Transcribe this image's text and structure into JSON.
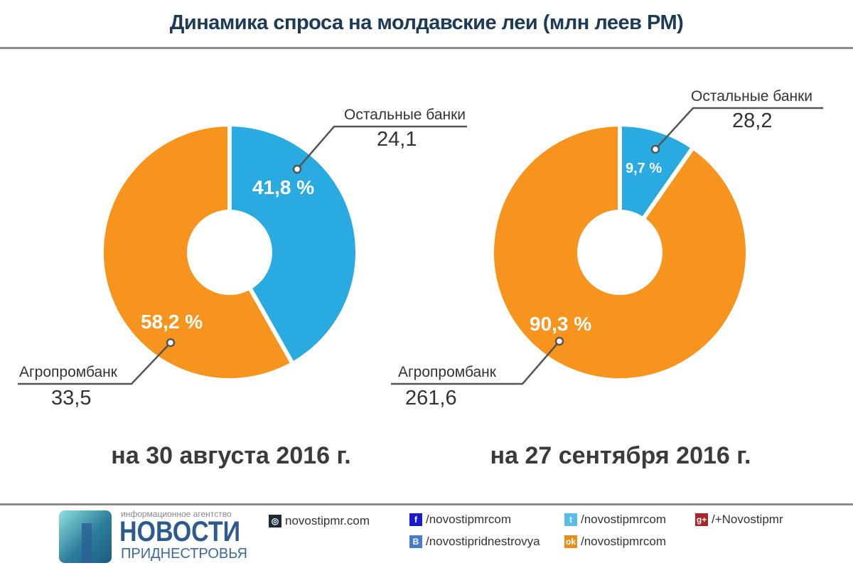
{
  "title": "Динамика спроса на молдавские леи (млн леев РМ)",
  "chart_data": [
    {
      "type": "pie",
      "subtitle": "на 30 августа 2016 г.",
      "slices": [
        {
          "name": "Остальные банки",
          "value": 24.1,
          "value_label": "24,1",
          "percent": 41.8,
          "percent_label": "41,8 %",
          "color": "#29abe2"
        },
        {
          "name": "Агропромбанк",
          "value": 33.5,
          "value_label": "33,5",
          "percent": 58.2,
          "percent_label": "58,2 %",
          "color": "#f7941d"
        }
      ]
    },
    {
      "type": "pie",
      "subtitle": "на 27 сентября 2016 г.",
      "slices": [
        {
          "name": "Остальные банки",
          "value": 28.2,
          "value_label": "28,2",
          "percent": 9.7,
          "percent_label": "9,7 %",
          "color": "#29abe2"
        },
        {
          "name": "Агропромбанк",
          "value": 261.6,
          "value_label": "261,6",
          "percent": 90.3,
          "percent_label": "90,3 %",
          "color": "#f7941d"
        }
      ]
    }
  ],
  "footer": {
    "agency": "информационное агентство",
    "brand1": "НОВОСТИ",
    "brand2": "ПРИДНЕСТРОВЬЯ",
    "site": "novostipmr.com",
    "facebook": "/novostipmrcom",
    "twitter": "/novostipmrcom",
    "gplus": "/+Novostipmr",
    "vk": "/novostipridnestrovya",
    "ok": "/novostipmrcom"
  }
}
